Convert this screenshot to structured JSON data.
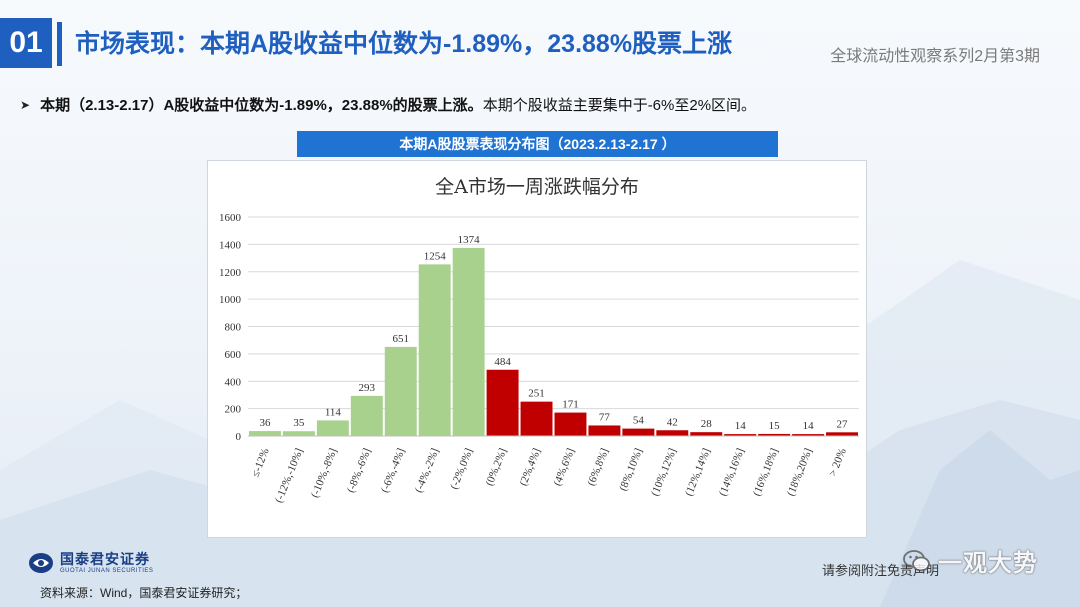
{
  "header": {
    "section_number": "01",
    "title": "市场表现：本期A股收益中位数为-1.89%，23.88%股票上涨",
    "series": "全球流动性观察系列2月第3期"
  },
  "bullet": {
    "bold_text": "本期（2.13-2.17）A股收益中位数为-1.89%，23.88%的股票上涨。",
    "text": "本期个股收益主要集中于-6%至2%区间。"
  },
  "chart_header": "本期A股股票表现分布图（2023.2.13-2.17 ）",
  "chart_data": {
    "type": "bar",
    "title": "全A市场一周涨跌幅分布",
    "categories": [
      "≤-12%",
      "(-12%,-10%]",
      "(-10%,-8%]",
      "(-8%,-6%]",
      "(-6%,-4%]",
      "(-4%,-2%]",
      "(-2%,0%]",
      "(0%,2%]",
      "(2%,4%]",
      "(4%,6%]",
      "(6%,8%]",
      "(8%,10%]",
      "(10%,12%]",
      "(12%,14%]",
      "(14%,16%]",
      "(16%,18%]",
      "(18%,20%]",
      "> 20%"
    ],
    "values": [
      36,
      35,
      114,
      293,
      651,
      1254,
      1374,
      484,
      251,
      171,
      77,
      54,
      42,
      28,
      14,
      15,
      14,
      27
    ],
    "ylim": [
      0,
      1600
    ],
    "yticks": [
      0,
      200,
      400,
      600,
      800,
      1000,
      1200,
      1400,
      1600
    ],
    "colors": {
      "negative": "#a9d18e",
      "positive": "#c00000"
    },
    "grid": true,
    "xlabel": "",
    "ylabel": ""
  },
  "footer": {
    "logo_cn": "国泰君安证券",
    "logo_en": "GUOTAI JUNAN SECURITIES",
    "source": "资料来源：Wind，国泰君安证券研究；",
    "disclaimer": "请参阅附注免责声明",
    "watermark": "一观大势"
  }
}
